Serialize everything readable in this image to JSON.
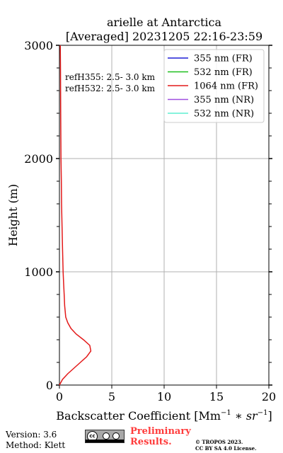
{
  "chart_data": {
    "type": "line",
    "title_line1": "arielle at Antarctica",
    "title_line2": "[Averaged] 20231205 22:16-23:59",
    "xlabel": "Backscatter Coefficient",
    "xlabel_units": "[Mm",
    "xlabel_units_tail": "sr",
    "ylabel": "Height (m)",
    "xlim": [
      0,
      20
    ],
    "ylim": [
      0,
      3000
    ],
    "xticks": [
      "0",
      "5",
      "10",
      "15",
      "20"
    ],
    "yticks": [
      "0",
      "1000",
      "2000",
      "3000"
    ],
    "grid": true,
    "legend_position": "top-right",
    "annotations": [
      "refH355:  2.5- 3.0 km",
      "refH532:  2.5- 3.0 km"
    ],
    "series": [
      {
        "name": "355 nm (FR)",
        "color": "#1f1fd6",
        "x": [],
        "y": []
      },
      {
        "name": "532 nm (FR)",
        "color": "#1fbf1f",
        "x": [],
        "y": []
      },
      {
        "name": "1064 nm (FR)",
        "color": "#e31a1a",
        "x": [
          0.0,
          0.3,
          0.8,
          1.4,
          2.0,
          2.6,
          3.0,
          2.9,
          2.3,
          1.6,
          1.1,
          0.8,
          0.6,
          0.5,
          0.45,
          0.4,
          0.35,
          0.3,
          0.25,
          0.2,
          0.18,
          0.15,
          0.12,
          0.1,
          0.08
        ],
        "y": [
          0,
          50,
          100,
          150,
          200,
          250,
          300,
          350,
          400,
          450,
          500,
          550,
          600,
          700,
          800,
          900,
          1000,
          1200,
          1400,
          1600,
          1800,
          2000,
          2400,
          2800,
          3000
        ]
      },
      {
        "name": "355 nm (NR)",
        "color": "#9f4fe0",
        "x": [],
        "y": []
      },
      {
        "name": "532 nm (NR)",
        "color": "#5fefd0",
        "x": [],
        "y": []
      }
    ]
  },
  "footer": {
    "version": "Version: 3.6",
    "method": "Method: Klett",
    "prelim_line1": "Preliminary",
    "prelim_line2": "Results.",
    "copyright_line1": "© TROPOS 2023.",
    "copyright_line2": "CC BY SA 4.0 License.",
    "cc_badge_text": "cc"
  }
}
